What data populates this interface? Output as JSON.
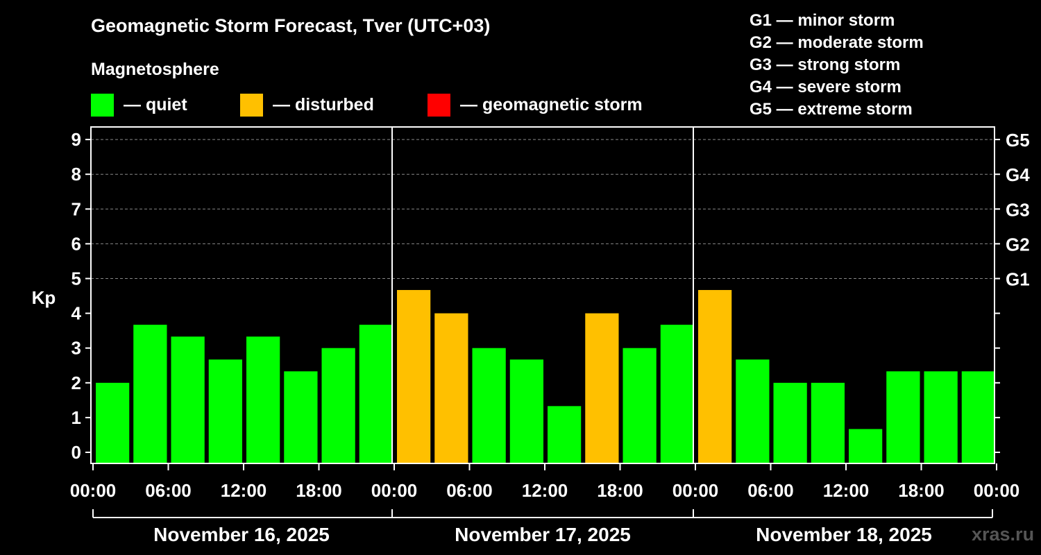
{
  "header": {
    "title": "Geomagnetic Storm Forecast, Tver (UTC+03)",
    "subtitle": "Magnetosphere"
  },
  "legend": [
    {
      "label": "— quiet",
      "color": "#00ff00"
    },
    {
      "label": "— disturbed",
      "color": "#ffc000"
    },
    {
      "label": "— geomagnetic storm",
      "color": "#ff0000"
    }
  ],
  "storm_scale": [
    "G1 — minor storm",
    "G2 — moderate storm",
    "G3 — strong storm",
    "G4 — severe storm",
    "G5 — extreme storm"
  ],
  "watermark": "xras.ru",
  "chart_data": {
    "type": "bar",
    "title": "Geomagnetic Storm Forecast, Tver (UTC+03)",
    "ylabel": "Kp",
    "ylim": [
      0,
      9
    ],
    "yticks": [
      "0",
      "1",
      "2",
      "3",
      "4",
      "5",
      "6",
      "7",
      "8",
      "9"
    ],
    "right_axis_labels": [
      {
        "kp": 5,
        "label": "G1"
      },
      {
        "kp": 6,
        "label": "G2"
      },
      {
        "kp": 7,
        "label": "G3"
      },
      {
        "kp": 8,
        "label": "G4"
      },
      {
        "kp": 9,
        "label": "G5"
      }
    ],
    "x_tick_labels": [
      "00:00",
      "06:00",
      "12:00",
      "18:00",
      "00:00",
      "06:00",
      "12:00",
      "18:00",
      "00:00",
      "06:00",
      "12:00",
      "18:00",
      "00:00"
    ],
    "days": [
      "November 16, 2025",
      "November 17, 2025",
      "November 18, 2025"
    ],
    "bar_interval_hours": 3,
    "values": [
      2.0,
      3.67,
      3.33,
      2.67,
      3.33,
      2.33,
      3.0,
      3.67,
      4.67,
      4.0,
      3.0,
      2.67,
      1.33,
      4.0,
      3.0,
      3.67,
      4.67,
      2.67,
      2.0,
      2.0,
      0.67,
      2.33,
      2.33,
      2.33
    ],
    "status": [
      "quiet",
      "quiet",
      "quiet",
      "quiet",
      "quiet",
      "quiet",
      "quiet",
      "quiet",
      "disturbed",
      "disturbed",
      "quiet",
      "quiet",
      "quiet",
      "disturbed",
      "quiet",
      "quiet",
      "disturbed",
      "quiet",
      "quiet",
      "quiet",
      "quiet",
      "quiet",
      "quiet",
      "quiet"
    ],
    "colors": {
      "quiet": "#00ff00",
      "disturbed": "#ffc000",
      "storm": "#ff0000",
      "grid": "#888888"
    }
  }
}
